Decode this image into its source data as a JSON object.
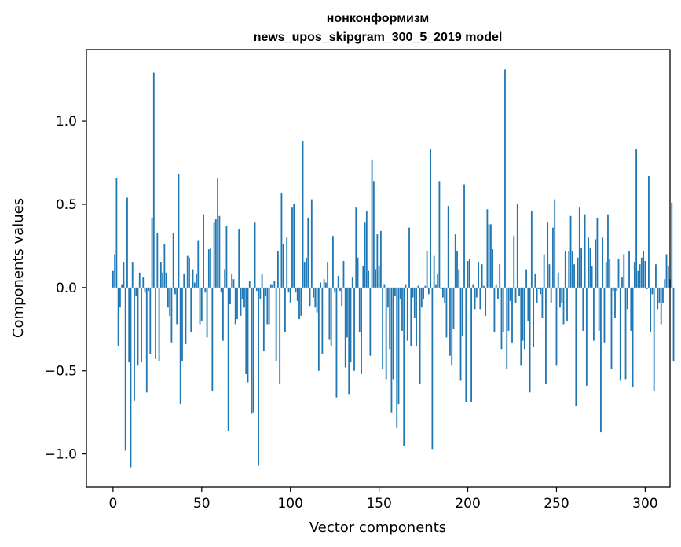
{
  "chart_data": {
    "type": "bar",
    "title": "нонконформизм",
    "subtitle": "news_upos_skipgram_300_5_2019 model",
    "xlabel": "Vector components",
    "ylabel": "Components values",
    "xlim": [
      -15,
      314
    ],
    "ylim": [
      -1.2,
      1.43
    ],
    "xticks": [
      0,
      50,
      100,
      150,
      200,
      250,
      300
    ],
    "xtick_labels": [
      "0",
      "50",
      "100",
      "150",
      "200",
      "250",
      "300"
    ],
    "yticks": [
      -1.0,
      -0.5,
      0.0,
      0.5,
      1.0
    ],
    "ytick_labels": [
      "−1.0",
      "−0.5",
      "0.0",
      "0.5",
      "1.0"
    ],
    "bar_color": "#1f77b4",
    "grid": false,
    "values": [
      0.1,
      0.2,
      0.66,
      -0.35,
      -0.12,
      0.02,
      0.15,
      -0.98,
      0.54,
      -0.45,
      -1.08,
      0.15,
      -0.68,
      -0.05,
      -0.47,
      0.09,
      -0.45,
      0.06,
      -0.03,
      -0.63,
      -0.02,
      -0.4,
      0.42,
      1.29,
      -0.43,
      0.33,
      -0.44,
      0.15,
      0.09,
      0.26,
      0.09,
      -0.12,
      -0.17,
      -0.33,
      0.33,
      -0.04,
      -0.22,
      0.68,
      -0.7,
      -0.44,
      0.08,
      -0.34,
      0.19,
      0.18,
      -0.27,
      0.11,
      0.03,
      0.08,
      0.28,
      -0.22,
      -0.2,
      0.44,
      -0.03,
      -0.3,
      0.23,
      0.24,
      -0.62,
      0.39,
      0.41,
      0.66,
      0.43,
      -0.03,
      -0.32,
      0.11,
      0.37,
      -0.86,
      -0.1,
      0.08,
      0.05,
      -0.22,
      -0.19,
      0.35,
      -0.17,
      -0.07,
      -0.12,
      -0.52,
      -0.57,
      0.04,
      -0.76,
      -0.75,
      0.39,
      -0.02,
      -1.07,
      -0.07,
      0.08,
      -0.38,
      -0.05,
      -0.22,
      -0.22,
      0.02,
      0.02,
      0.04,
      -0.44,
      0.22,
      -0.58,
      0.57,
      0.26,
      -0.27,
      0.3,
      -0.03,
      -0.09,
      0.48,
      0.5,
      -0.03,
      -0.08,
      -0.19,
      -0.17,
      0.88,
      0.15,
      0.18,
      0.42,
      -0.11,
      0.53,
      -0.06,
      -0.12,
      -0.15,
      -0.5,
      0.03,
      -0.4,
      0.05,
      0.03,
      0.15,
      -0.31,
      -0.35,
      0.31,
      -0.03,
      -0.66,
      0.07,
      -0.02,
      -0.11,
      0.16,
      -0.48,
      -0.3,
      -0.64,
      -0.45,
      0.06,
      -0.5,
      0.48,
      0.18,
      -0.27,
      -0.52,
      0.13,
      0.39,
      0.46,
      0.1,
      -0.41,
      0.77,
      0.64,
      0.11,
      0.32,
      0.13,
      0.34,
      -0.49,
      0.02,
      -0.55,
      -0.12,
      -0.37,
      -0.75,
      -0.55,
      -0.05,
      -0.84,
      -0.7,
      -0.07,
      -0.26,
      -0.95,
      0.02,
      -0.32,
      0.36,
      -0.35,
      -0.06,
      -0.18,
      -0.35,
      0.01,
      -0.58,
      -0.12,
      -0.07,
      0.01,
      0.22,
      -0.04,
      0.83,
      -0.97,
      0.19,
      0.02,
      0.08,
      0.64,
      -0.01,
      -0.06,
      -0.09,
      -0.3,
      0.49,
      -0.41,
      -0.47,
      -0.25,
      0.32,
      0.22,
      0.11,
      -0.56,
      -0.29,
      0.62,
      -0.69,
      0.16,
      0.17,
      -0.69,
      0.02,
      -0.13,
      -0.06,
      0.15,
      -0.13,
      0.14,
      0.01,
      -0.17,
      0.47,
      0.38,
      0.38,
      0.23,
      -0.27,
      0.02,
      -0.07,
      0.14,
      -0.37,
      -0.27,
      1.31,
      -0.49,
      -0.26,
      -0.08,
      -0.33,
      0.31,
      -0.09,
      0.5,
      -0.05,
      -0.47,
      -0.32,
      -0.37,
      0.11,
      -0.2,
      -0.63,
      0.46,
      -0.36,
      0.08,
      -0.09,
      -0.01,
      -0.04,
      -0.18,
      0.2,
      -0.58,
      0.39,
      0.14,
      -0.09,
      0.36,
      0.53,
      -0.47,
      0.09,
      -0.12,
      -0.09,
      -0.22,
      0.22,
      -0.2,
      0.22,
      0.43,
      0.22,
      0.14,
      -0.71,
      0.18,
      0.48,
      0.24,
      -0.26,
      0.44,
      -0.59,
      0.3,
      0.24,
      0.13,
      -0.32,
      0.29,
      0.42,
      -0.26,
      -0.87,
      0.3,
      -0.33,
      0.15,
      0.44,
      0.17,
      -0.49,
      -0.02,
      -0.18,
      -0.02,
      0.17,
      -0.56,
      0.06,
      0.2,
      -0.55,
      -0.13,
      0.22,
      -0.26,
      -0.6,
      0.15,
      0.83,
      0.1,
      0.14,
      0.18,
      0.22,
      0.16,
      -0.01,
      0.67,
      -0.27,
      -0.04,
      -0.62,
      0.14,
      -0.13,
      -0.09,
      -0.22,
      -0.09,
      0.05,
      0.2,
      0.13,
      0.05,
      0.51,
      -0.44
    ]
  }
}
